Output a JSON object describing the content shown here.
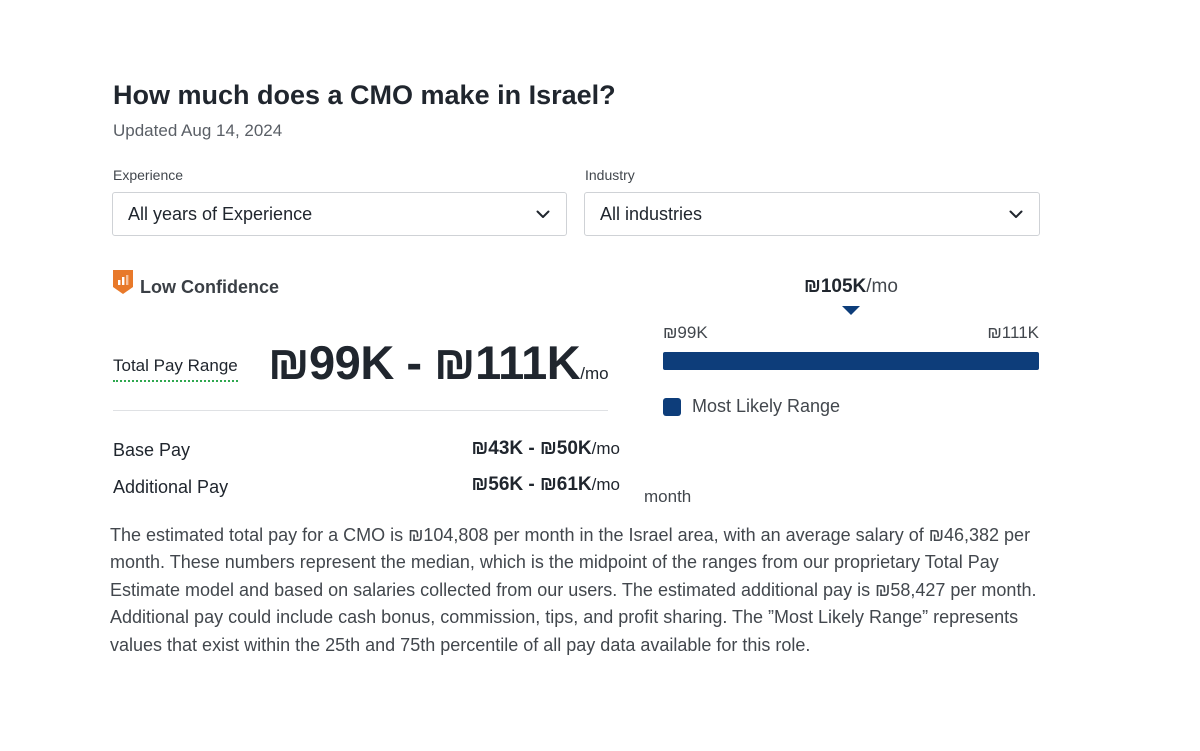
{
  "header": {
    "title": "How much does a CMO make in Israel?",
    "updated": "Updated Aug 14, 2024"
  },
  "filters": {
    "experience": {
      "label": "Experience",
      "value": "All years of Experience",
      "icon": "chevron-down-icon"
    },
    "industry": {
      "label": "Industry",
      "value": "All industries",
      "icon": "chevron-down-icon"
    }
  },
  "confidence": {
    "label": "Low Confidence",
    "icon": "low-confidence-bar-chart-icon",
    "color": "#e8792a"
  },
  "total_pay": {
    "label": "Total Pay Range",
    "range": "₪99K - ₪111K",
    "unit": "/mo"
  },
  "breakdown": {
    "base_pay": {
      "label": "Base Pay",
      "range": "₪43K - ₪50K",
      "unit": "/mo"
    },
    "additional_pay": {
      "label": "Additional Pay",
      "range": "₪56K - ₪61K",
      "unit": "/mo"
    }
  },
  "range_chart": {
    "median_value": "₪105K",
    "median_unit": "/mo",
    "low_label": "₪99K",
    "high_label": "₪111K",
    "median_fraction": 0.5,
    "bar_color": "#0d3d7a",
    "legend_label": "Most Likely Range"
  },
  "stray_label": "month",
  "description": "The estimated total pay for a CMO is ₪104,808 per month in the Israel area, with an average salary of ₪46,382 per month. These numbers represent the median, which is the midpoint of the ranges from our proprietary Total Pay Estimate model and based on salaries collected from our users. The estimated additional pay is ₪58,427 per month. Additional pay could include cash bonus, commission, tips, and profit sharing. The ”Most Likely Range” represents values that exist within the 25th and 75th percentile of all pay data available for this role."
}
